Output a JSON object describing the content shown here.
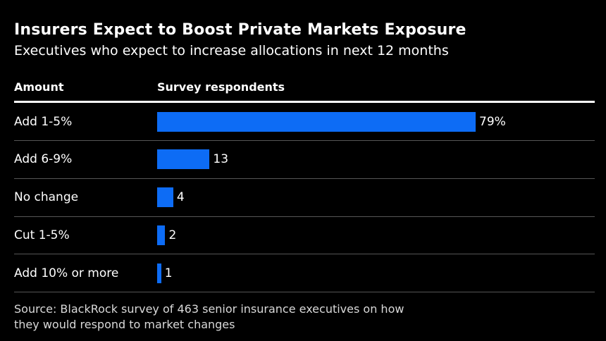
{
  "header": {
    "title": "Insurers Expect to Boost Private Markets Exposure",
    "subtitle": "Executives who expect to increase allocations in next 12 months"
  },
  "table": {
    "col1_header": "Amount",
    "col2_header": "Survey respondents"
  },
  "chart_data": {
    "type": "bar",
    "orientation": "horizontal",
    "title": "Insurers Expect to Boost Private Markets Exposure",
    "subtitle": "Executives who expect to increase allocations in next 12 months",
    "xlabel": "Survey respondents",
    "ylabel": "Amount",
    "categories": [
      "Add 1-5%",
      "Add 6-9%",
      "No change",
      "Cut 1-5%",
      "Add 10% or more"
    ],
    "values": [
      79,
      13,
      4,
      2,
      1
    ],
    "unit": "% of respondents",
    "value_axis_range": [
      0,
      79
    ],
    "grid": false,
    "legend": false,
    "bar_color": "#0d6cf5",
    "background_color": "#000000",
    "rows": [
      {
        "label": "Add 1-5%",
        "value": 79,
        "display_value": "79%"
      },
      {
        "label": "Add 6-9%",
        "value": 13,
        "display_value": "13"
      },
      {
        "label": "No change",
        "value": 4,
        "display_value": "4"
      },
      {
        "label": "Cut 1-5%",
        "value": 2,
        "display_value": "2"
      },
      {
        "label": "Add 10% or more",
        "value": 1,
        "display_value": "1"
      }
    ]
  },
  "footer": {
    "source_line1": "Source: BlackRock survey of 463 senior insurance executives on how",
    "source_line2": "they would respond to market changes"
  }
}
